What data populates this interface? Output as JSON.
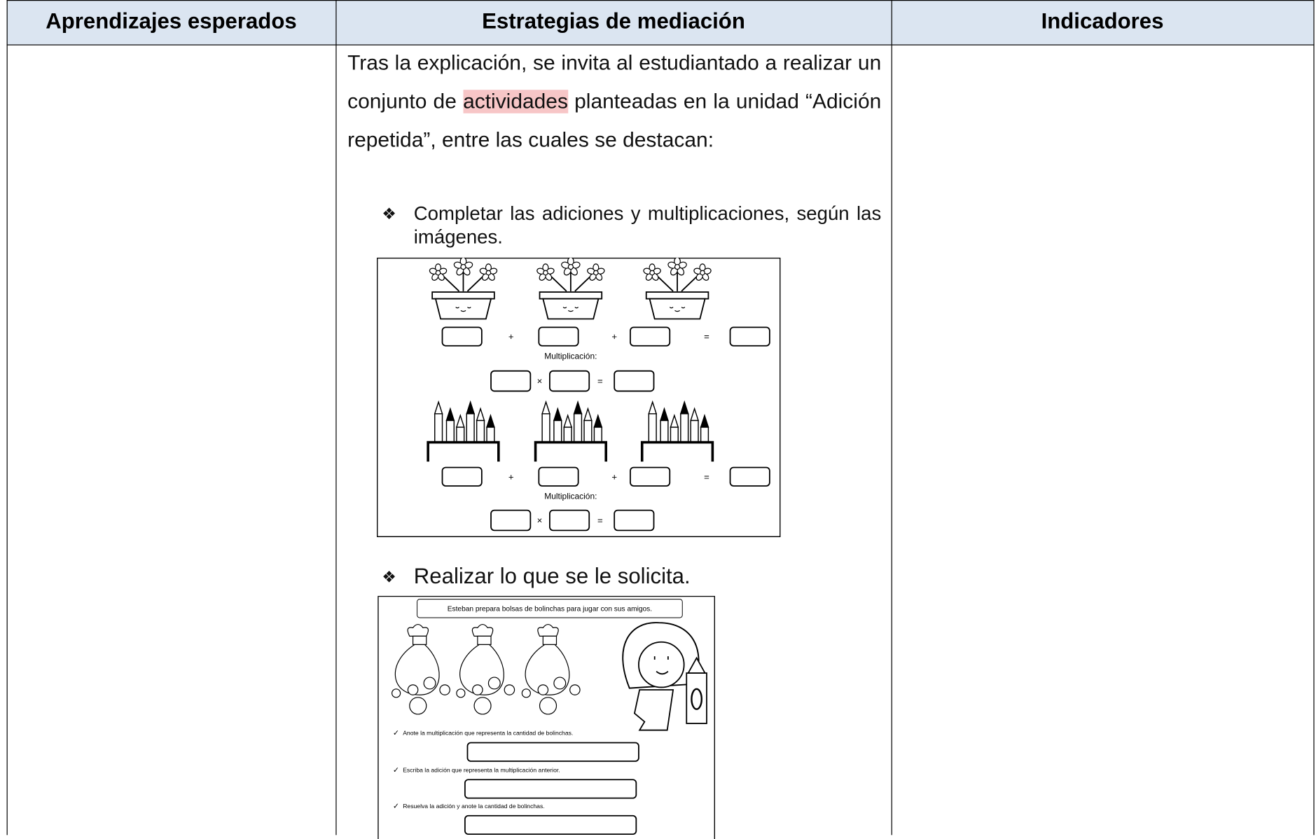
{
  "header": [
    "Aprendizajes esperados",
    "Estrategias de mediación",
    "Indicadores"
  ],
  "intro": {
    "before": "Tras la explicación, se invita al estudiantado a realizar un conjunto de ",
    "highlight": "actividades",
    "after": " planteadas en la unidad “Adición repetida”, entre las cuales se destacan:"
  },
  "activities": [
    {
      "bullet": "❖",
      "text": "Completar las adiciones y multiplicaciones, según las imágenes.",
      "worksheet": {
        "addition_signs": [
          "+",
          "+",
          "="
        ],
        "multiplication_signs": [
          "×",
          "="
        ],
        "groups": [
          {
            "label": "Multiplicación:"
          },
          {
            "label": "Multiplicación:"
          }
        ]
      }
    },
    {
      "bullet": "❖",
      "text": "Realizar lo que se le solicita.",
      "worksheet": {
        "title": "Esteban prepara bolsas de bolinchas para jugar con sus amigos.",
        "tasks": [
          {
            "check": "✓",
            "text": "Anote la multiplicación que representa la cantidad de bolinchas."
          },
          {
            "check": "✓",
            "text": "Escriba la adición que representa la multiplicación anterior."
          },
          {
            "check": "✓",
            "text": "Resuelva la adición y anote la cantidad de bolinchas."
          }
        ]
      }
    }
  ]
}
